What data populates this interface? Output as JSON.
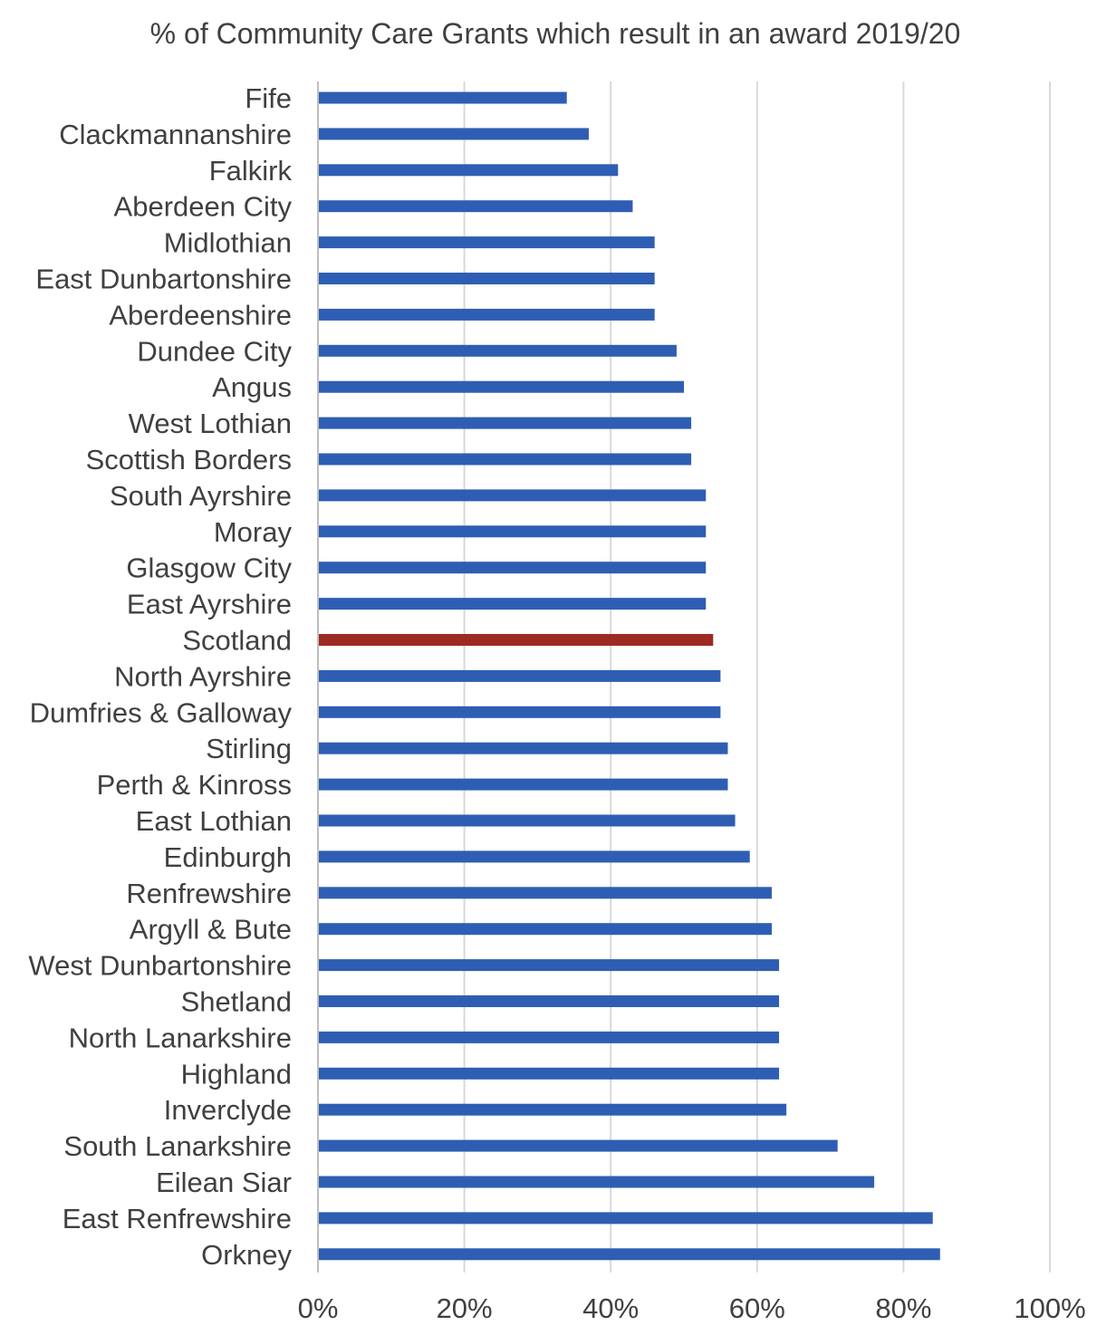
{
  "chart_data": {
    "type": "bar",
    "orientation": "horizontal",
    "title": "% of Community Care Grants which result in an award 2019/20",
    "xlabel": "",
    "ylabel": "",
    "xlim": [
      0,
      100
    ],
    "x_ticks": [
      "0%",
      "20%",
      "40%",
      "60%",
      "80%",
      "100%"
    ],
    "x_tick_values": [
      0,
      20,
      40,
      60,
      80,
      100
    ],
    "grid": "vertical",
    "legend": "none",
    "series_color": "#2e5eb3",
    "highlight_color": "#9e2a24",
    "highlight_category": "Scotland",
    "categories": [
      "Fife",
      "Clackmannanshire",
      "Falkirk",
      "Aberdeen City",
      "Midlothian",
      "East Dunbartonshire",
      "Aberdeenshire",
      "Dundee City",
      "Angus",
      "West Lothian",
      "Scottish Borders",
      "South Ayrshire",
      "Moray",
      "Glasgow City",
      "East Ayrshire",
      "Scotland",
      "North Ayrshire",
      "Dumfries & Galloway",
      "Stirling",
      "Perth & Kinross",
      "East Lothian",
      "Edinburgh",
      "Renfrewshire",
      "Argyll & Bute",
      "West Dunbartonshire",
      "Shetland",
      "North Lanarkshire",
      "Highland",
      "Inverclyde",
      "South Lanarkshire",
      "Eilean Siar",
      "East Renfrewshire",
      "Orkney"
    ],
    "values": [
      34,
      37,
      41,
      43,
      46,
      46,
      46,
      49,
      50,
      51,
      51,
      53,
      53,
      53,
      53,
      54,
      55,
      55,
      56,
      56,
      57,
      59,
      62,
      62,
      63,
      63,
      63,
      63,
      64,
      71,
      76,
      84,
      85
    ]
  }
}
